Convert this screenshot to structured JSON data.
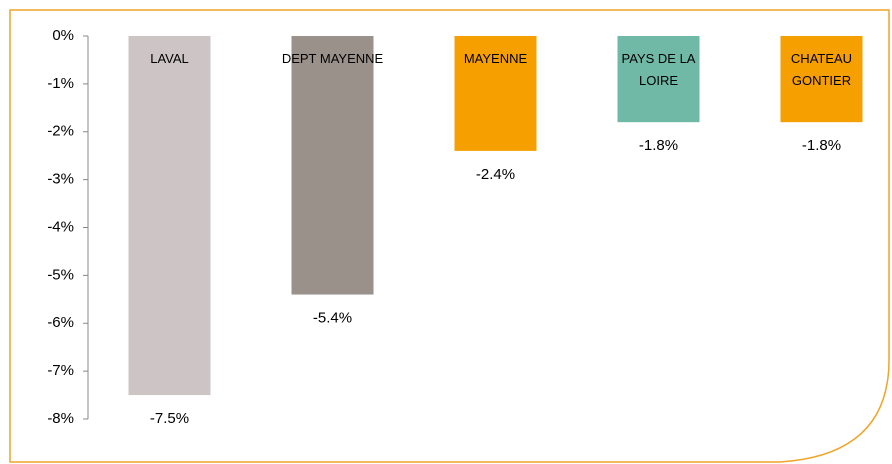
{
  "chart_data": {
    "type": "bar",
    "categories": [
      "LAVAL",
      "DEPT MAYENNE",
      "MAYENNE",
      "PAYS DE LA LOIRE",
      "CHATEAU GONTIER"
    ],
    "values": [
      -7.5,
      -5.4,
      -2.4,
      -1.8,
      -1.8
    ],
    "value_labels": [
      "-7.5%",
      "-5.4%",
      "-2.4%",
      "-1.8%",
      "-1.8%"
    ],
    "colors": [
      "#cdc5c5",
      "#9b918b",
      "#f5a000",
      "#6fb9a6",
      "#f5a000"
    ],
    "ylim": [
      -8,
      0
    ],
    "yticks": [
      {
        "value": 0,
        "label": "0%"
      },
      {
        "value": -1,
        "label": "-1%"
      },
      {
        "value": -2,
        "label": "-2%"
      },
      {
        "value": -3,
        "label": "-3%"
      },
      {
        "value": -4,
        "label": "-4%"
      },
      {
        "value": -5,
        "label": "-5%"
      },
      {
        "value": -6,
        "label": "-6%"
      },
      {
        "value": -7,
        "label": "-7%"
      },
      {
        "value": -8,
        "label": "-8%"
      }
    ]
  }
}
